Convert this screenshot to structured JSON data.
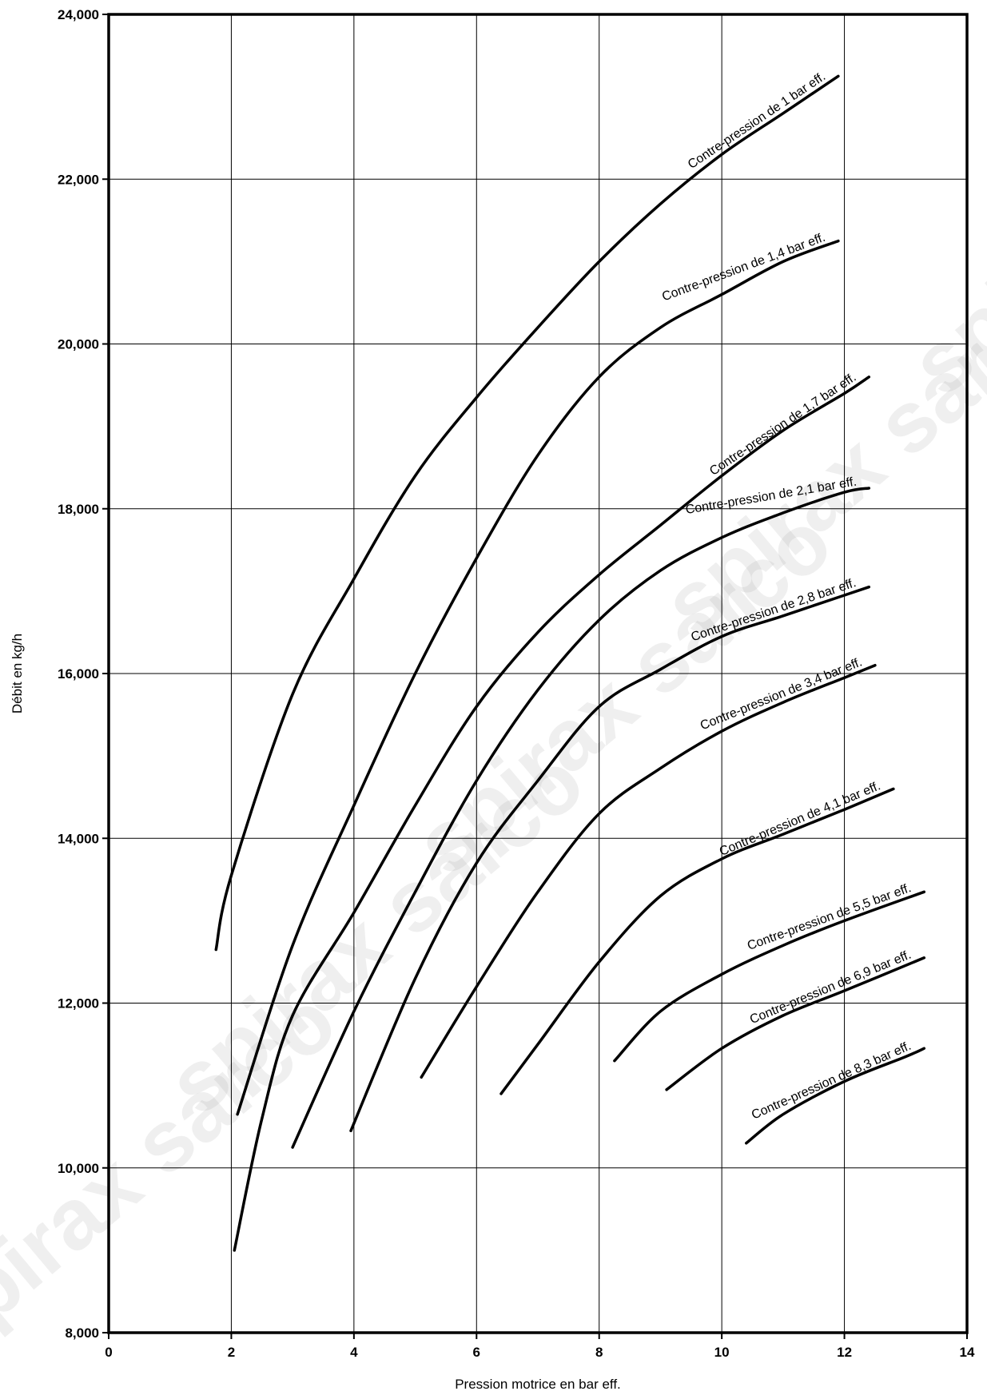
{
  "chart_data": {
    "type": "line",
    "xlabel": "Pression motrice en bar eff.",
    "ylabel": "Débit en kg/h",
    "xlim": [
      0,
      14
    ],
    "ylim": [
      8000,
      24000
    ],
    "xticks": [
      0,
      2,
      4,
      6,
      8,
      10,
      12,
      14
    ],
    "xtick_labels": [
      "0",
      "2",
      "4",
      "6",
      "8",
      "10",
      "12",
      "14"
    ],
    "yticks": [
      8000,
      10000,
      12000,
      14000,
      16000,
      18000,
      20000,
      22000,
      24000
    ],
    "ytick_labels": [
      "8,000",
      "10,000",
      "12,000",
      "14,000",
      "16,000",
      "18,000",
      "20,000",
      "22,000",
      "24,000"
    ],
    "grid": true,
    "watermark": "spirax sarco",
    "series": [
      {
        "name": "Contre-pression de 1 bar eff.",
        "x": [
          1.75,
          2,
          3,
          4,
          5,
          6,
          7,
          8,
          9,
          10,
          11,
          11.9
        ],
        "y": [
          12650,
          13550,
          15750,
          17150,
          18400,
          19350,
          20200,
          21000,
          21700,
          22300,
          22800,
          23250
        ]
      },
      {
        "name": "Contre-pression de 1,4 bar eff.",
        "x": [
          2.1,
          3,
          4,
          5,
          6,
          7,
          8,
          9,
          10,
          11,
          11.9
        ],
        "y": [
          10650,
          12700,
          14400,
          16000,
          17400,
          18650,
          19600,
          20200,
          20600,
          21000,
          21250
        ]
      },
      {
        "name": "Contre-pression de 1,7 bar eff.",
        "x": [
          2.05,
          2.5,
          3,
          4,
          5,
          6,
          7,
          8,
          9,
          10,
          11,
          12,
          12.4
        ],
        "y": [
          9000,
          10600,
          11850,
          13100,
          14400,
          15600,
          16500,
          17200,
          17800,
          18400,
          18950,
          19400,
          19600
        ]
      },
      {
        "name": "Contre-pression de 2,1 bar eff.",
        "x": [
          3,
          4,
          5,
          6,
          7,
          8,
          9,
          10,
          11,
          12,
          12.4
        ],
        "y": [
          10250,
          11900,
          13350,
          14700,
          15800,
          16650,
          17250,
          17650,
          17950,
          18200,
          18250
        ]
      },
      {
        "name": "Contre-pression de 2,8 bar eff.",
        "x": [
          3.95,
          5,
          6,
          7,
          8,
          9,
          10,
          11,
          12,
          12.4
        ],
        "y": [
          10450,
          12300,
          13700,
          14700,
          15600,
          16050,
          16450,
          16700,
          16950,
          17050
        ]
      },
      {
        "name": "Contre-pression de 3,4 bar eff.",
        "x": [
          5.1,
          6,
          7,
          8,
          9,
          10,
          11,
          12,
          12.5
        ],
        "y": [
          11100,
          12200,
          13350,
          14300,
          14850,
          15300,
          15650,
          15950,
          16100
        ]
      },
      {
        "name": "Contre-pression de 4,1 bar eff.",
        "x": [
          6.4,
          7,
          8,
          9,
          10,
          11,
          12,
          12.8
        ],
        "y": [
          10900,
          11500,
          12500,
          13300,
          13750,
          14050,
          14350,
          14600
        ]
      },
      {
        "name": "Contre-pression de 5,5 bar eff.",
        "x": [
          8.25,
          9,
          10,
          11,
          12,
          13.3
        ],
        "y": [
          11300,
          11900,
          12350,
          12700,
          13000,
          13350
        ]
      },
      {
        "name": "Contre-pression de 6,9 bar eff.",
        "x": [
          9.1,
          10,
          11,
          12,
          13.3
        ],
        "y": [
          10950,
          11450,
          11850,
          12150,
          12550
        ]
      },
      {
        "name": "Contre-pression de 8,3 bar eff.",
        "x": [
          10.4,
          11,
          12,
          13,
          13.3
        ],
        "y": [
          10300,
          10650,
          11050,
          11350,
          11450
        ]
      }
    ]
  }
}
